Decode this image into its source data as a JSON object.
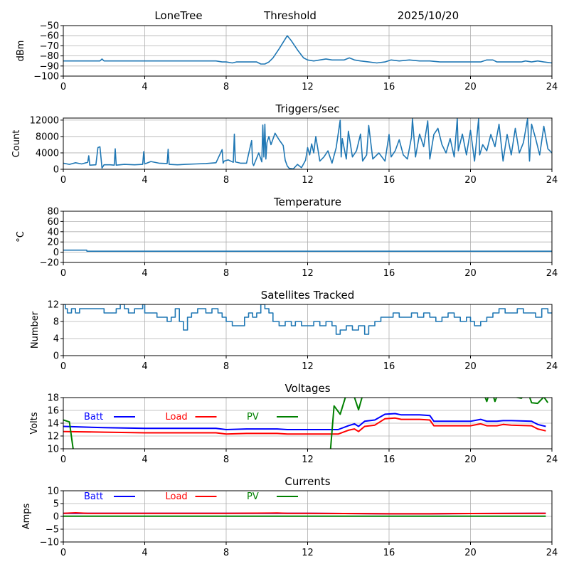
{
  "header": {
    "station": "LoneTree",
    "mode": "Threshold",
    "date": "2025/10/20"
  },
  "chart_data": [
    {
      "id": "signal",
      "type": "line",
      "title": "",
      "xlabel": "",
      "ylabel": "dBm",
      "xlim": [
        0,
        24
      ],
      "ylim": [
        -100,
        -50
      ],
      "xticks": [
        0,
        4,
        8,
        12,
        16,
        20,
        24
      ],
      "yticks": [
        -100,
        -90,
        -80,
        -70,
        -60,
        -50
      ],
      "ytick_labels": [
        "−100",
        "−90",
        "−80",
        "−70",
        "−60",
        "−50"
      ],
      "grid": true,
      "series": [
        {
          "name": "signal",
          "color": "#1f77b4",
          "x": [
            0,
            0.5,
            1,
            1.5,
            1.8,
            1.9,
            2.0,
            2.5,
            3,
            4,
            5,
            6,
            7,
            7.5,
            7.8,
            8.0,
            8.3,
            8.5,
            9.0,
            9.5,
            9.7,
            9.9,
            10.1,
            10.3,
            10.6,
            11.0,
            11.2,
            11.5,
            11.8,
            12.0,
            12.3,
            12.6,
            12.9,
            13.2,
            13.5,
            13.8,
            14.05,
            14.3,
            14.6,
            15.0,
            15.4,
            15.8,
            16.1,
            16.5,
            17.0,
            17.5,
            18.0,
            18.5,
            19.0,
            19.5,
            20.0,
            20.5,
            20.8,
            21.1,
            21.3,
            21.7,
            22.2,
            22.5,
            22.7,
            23.0,
            23.3,
            23.6,
            24.0
          ],
          "y": [
            -85,
            -85,
            -85,
            -85,
            -85,
            -83,
            -85,
            -85,
            -85,
            -85,
            -85,
            -85,
            -85,
            -85,
            -86,
            -86,
            -87,
            -86,
            -86,
            -86,
            -88,
            -88,
            -86,
            -82,
            -73,
            -60,
            -65,
            -74,
            -82,
            -84,
            -85,
            -84,
            -83,
            -84,
            -84,
            -84,
            -82,
            -84,
            -85,
            -86,
            -87,
            -86,
            -84,
            -85,
            -84,
            -85,
            -85,
            -86,
            -86,
            -86,
            -86,
            -86,
            -84,
            -84,
            -86,
            -86,
            -86,
            -86,
            -85,
            -86,
            -85,
            -86,
            -87
          ]
        }
      ]
    },
    {
      "id": "triggers",
      "type": "line",
      "title": "Triggers/sec",
      "xlabel": "",
      "ylabel": "Count",
      "xlim": [
        0,
        24
      ],
      "ylim": [
        0,
        12500
      ],
      "xticks": [
        0,
        4,
        8,
        12,
        16,
        20,
        24
      ],
      "yticks": [
        0,
        4000,
        8000,
        12000
      ],
      "ytick_labels": [
        "0",
        "4000",
        "8000",
        "12000"
      ],
      "grid": true,
      "series": [
        {
          "name": "triggers",
          "color": "#1f77b4",
          "x": [
            0,
            0.3,
            0.6,
            0.9,
            1.2,
            1.25,
            1.3,
            1.6,
            1.7,
            1.8,
            1.9,
            2.0,
            2.3,
            2.5,
            2.55,
            2.6,
            3.0,
            3.5,
            3.9,
            3.95,
            4.0,
            4.3,
            4.7,
            5.1,
            5.15,
            5.2,
            5.6,
            6.0,
            6.5,
            7.0,
            7.5,
            7.8,
            7.85,
            7.9,
            8.1,
            8.35,
            8.4,
            8.45,
            8.7,
            9.0,
            9.25,
            9.3,
            9.35,
            9.6,
            9.75,
            9.8,
            9.85,
            9.9,
            9.95,
            10.0,
            10.1,
            10.2,
            10.4,
            10.6,
            10.8,
            10.9,
            11.0,
            11.1,
            11.3,
            11.5,
            11.7,
            11.9,
            12.0,
            12.1,
            12.2,
            12.3,
            12.4,
            12.6,
            12.8,
            13.0,
            13.2,
            13.4,
            13.6,
            13.65,
            13.7,
            13.9,
            14.0,
            14.2,
            14.4,
            14.6,
            14.7,
            14.9,
            15.0,
            15.2,
            15.5,
            15.8,
            16.0,
            16.1,
            16.3,
            16.5,
            16.7,
            16.9,
            17.1,
            17.15,
            17.3,
            17.5,
            17.7,
            17.9,
            18.0,
            18.2,
            18.4,
            18.6,
            18.8,
            19.0,
            19.2,
            19.35,
            19.4,
            19.6,
            19.8,
            20.0,
            20.2,
            20.4,
            20.45,
            20.6,
            20.8,
            21.0,
            21.2,
            21.4,
            21.6,
            21.8,
            22.0,
            22.2,
            22.4,
            22.6,
            22.8,
            22.9,
            23.0,
            23.2,
            23.4,
            23.6,
            23.8,
            24.0
          ],
          "y": [
            1500,
            1200,
            1600,
            1300,
            1700,
            3300,
            1000,
            1100,
            5300,
            5500,
            300,
            1100,
            1100,
            1000,
            5000,
            1000,
            1200,
            1100,
            1200,
            4300,
            1300,
            1900,
            1500,
            1400,
            4900,
            1200,
            1100,
            1200,
            1300,
            1400,
            1600,
            4800,
            1500,
            2000,
            2300,
            1700,
            8600,
            1800,
            1500,
            1500,
            7000,
            1500,
            900,
            4000,
            1800,
            10800,
            3000,
            11000,
            2500,
            6500,
            8000,
            6000,
            8800,
            7200,
            5800,
            2200,
            800,
            200,
            100,
            1200,
            400,
            2200,
            5300,
            3500,
            6200,
            4000,
            8000,
            2000,
            3000,
            4500,
            1500,
            5200,
            12000,
            3000,
            7500,
            2500,
            9300,
            3000,
            4500,
            8600,
            2000,
            3500,
            10700,
            2500,
            4000,
            2000,
            8500,
            3000,
            4500,
            7200,
            3500,
            2500,
            7800,
            12300,
            3000,
            8600,
            5500,
            11800,
            2500,
            8500,
            10000,
            6000,
            4000,
            7500,
            3000,
            12300,
            4500,
            8600,
            3500,
            9500,
            2000,
            12300,
            3500,
            6000,
            4500,
            8500,
            5500,
            11000,
            2000,
            8500,
            3500,
            10000,
            4000,
            6500,
            12300,
            2000,
            11000,
            7500,
            3500,
            10500,
            5000,
            4000
          ]
        }
      ]
    },
    {
      "id": "temperature",
      "type": "line",
      "title": "Temperature",
      "xlabel": "",
      "ylabel": "°C",
      "ylabel_display": "oC",
      "xlim": [
        0,
        24
      ],
      "ylim": [
        -20,
        80
      ],
      "xticks": [
        0,
        4,
        8,
        12,
        16,
        20,
        24
      ],
      "yticks": [
        -20,
        0,
        20,
        40,
        60,
        80
      ],
      "ytick_labels": [
        "−20",
        "0",
        "20",
        "40",
        "60",
        "80"
      ],
      "grid": true,
      "series": [
        {
          "name": "temperature",
          "color": "#1f77b4",
          "x": [
            0,
            1.15,
            1.16,
            24
          ],
          "y": [
            4,
            4,
            2,
            2
          ]
        }
      ]
    },
    {
      "id": "satellites",
      "type": "line",
      "title": "Satellites Tracked",
      "xlabel": "",
      "ylabel": "Number",
      "xlim": [
        0,
        24
      ],
      "ylim": [
        0,
        12
      ],
      "xticks": [
        0,
        4,
        8,
        12,
        16,
        20,
        24
      ],
      "yticks": [
        0,
        4,
        8,
        12
      ],
      "ytick_labels": [
        "0",
        "4",
        "8",
        "12"
      ],
      "grid": true,
      "series": [
        {
          "name": "satellites",
          "color": "#1f77b4",
          "step": true,
          "x": [
            0,
            0.1,
            0.2,
            0.4,
            0.6,
            0.8,
            1.0,
            1.5,
            2.0,
            2.4,
            2.6,
            2.8,
            3.0,
            3.2,
            3.5,
            3.7,
            3.9,
            4.0,
            4.3,
            4.6,
            4.9,
            5.1,
            5.3,
            5.5,
            5.7,
            5.9,
            6.1,
            6.3,
            6.6,
            7.0,
            7.3,
            7.6,
            7.8,
            8.0,
            8.3,
            8.6,
            8.9,
            9.1,
            9.3,
            9.5,
            9.7,
            9.9,
            10.1,
            10.3,
            10.6,
            10.9,
            11.2,
            11.4,
            11.7,
            12.0,
            12.3,
            12.6,
            12.9,
            13.2,
            13.4,
            13.6,
            13.9,
            14.2,
            14.5,
            14.8,
            15.0,
            15.3,
            15.6,
            15.9,
            16.2,
            16.5,
            16.8,
            17.1,
            17.4,
            17.7,
            18.0,
            18.3,
            18.6,
            18.9,
            19.2,
            19.5,
            19.8,
            20.0,
            20.2,
            20.5,
            20.8,
            21.1,
            21.4,
            21.7,
            22.0,
            22.3,
            22.6,
            22.9,
            23.2,
            23.5,
            23.8,
            24.0
          ],
          "y": [
            12,
            11,
            10,
            11,
            10,
            11,
            11,
            11,
            10,
            10,
            11,
            12,
            11,
            10,
            11,
            11,
            12,
            10,
            10,
            9,
            9,
            8,
            9,
            11,
            8,
            6,
            9,
            10,
            11,
            10,
            11,
            10,
            9,
            8,
            7,
            7,
            9,
            10,
            9,
            10,
            12,
            11,
            10,
            8,
            7,
            8,
            7,
            8,
            7,
            7,
            8,
            7,
            8,
            7,
            5,
            6,
            7,
            6,
            7,
            5,
            7,
            8,
            9,
            9,
            10,
            9,
            9,
            10,
            9,
            10,
            9,
            8,
            9,
            10,
            9,
            8,
            9,
            8,
            7,
            8,
            9,
            10,
            11,
            10,
            10,
            11,
            10,
            10,
            9,
            11,
            10,
            10
          ]
        }
      ]
    },
    {
      "id": "voltages",
      "type": "line",
      "title": "Voltages",
      "xlabel": "",
      "ylabel": "Volts",
      "xlim": [
        0,
        24
      ],
      "ylim": [
        10,
        18
      ],
      "xticks": [
        0,
        4,
        8,
        12,
        16,
        20,
        24
      ],
      "yticks": [
        10,
        12,
        14,
        16,
        18
      ],
      "ytick_labels": [
        "10",
        "12",
        "14",
        "16",
        "18"
      ],
      "grid": true,
      "legend": {
        "placement": "top-left",
        "entries": [
          {
            "label": "Batt",
            "color": "#0000ff"
          },
          {
            "label": "Load",
            "color": "#ff0000"
          },
          {
            "label": "PV",
            "color": "#008000"
          }
        ]
      },
      "series": [
        {
          "name": "Batt",
          "color": "#0000ff",
          "x": [
            0,
            2,
            4,
            6,
            7.5,
            8,
            9,
            10.5,
            11,
            11.5,
            12,
            13,
            13.5,
            14.0,
            14.3,
            14.5,
            14.8,
            15.3,
            15.8,
            16.3,
            16.6,
            17.0,
            17.5,
            18.0,
            18.2,
            20.0,
            20.5,
            20.8,
            21.3,
            21.6,
            22.0,
            23.0,
            23.3,
            23.7
          ],
          "y": [
            13.5,
            13.3,
            13.2,
            13.2,
            13.2,
            13.0,
            13.1,
            13.1,
            13.0,
            13.0,
            13.0,
            13.0,
            13.0,
            13.6,
            13.9,
            13.5,
            14.3,
            14.5,
            15.4,
            15.5,
            15.3,
            15.3,
            15.3,
            15.2,
            14.3,
            14.3,
            14.6,
            14.3,
            14.3,
            14.4,
            14.4,
            14.3,
            13.8,
            13.5
          ]
        },
        {
          "name": "Load",
          "color": "#ff0000",
          "x": [
            0,
            2,
            4,
            6,
            7.5,
            8,
            9,
            10.5,
            11,
            11.5,
            12,
            13,
            13.5,
            14.0,
            14.3,
            14.5,
            14.8,
            15.3,
            15.8,
            16.3,
            16.6,
            17.0,
            17.5,
            18.0,
            18.2,
            20.0,
            20.5,
            20.8,
            21.3,
            21.6,
            22.0,
            23.0,
            23.3,
            23.7
          ],
          "y": [
            12.7,
            12.6,
            12.5,
            12.5,
            12.5,
            12.3,
            12.4,
            12.4,
            12.3,
            12.3,
            12.3,
            12.3,
            12.3,
            12.9,
            13.1,
            12.7,
            13.5,
            13.7,
            14.7,
            14.8,
            14.6,
            14.6,
            14.6,
            14.5,
            13.6,
            13.6,
            13.9,
            13.6,
            13.6,
            13.8,
            13.7,
            13.6,
            13.1,
            12.8
          ]
        },
        {
          "name": "PV",
          "color": "#008000",
          "x": [
            0,
            0.3,
            0.7,
            13.0,
            13.3,
            13.6,
            13.9,
            14.2,
            14.5,
            14.8,
            20.6,
            20.8,
            21.0,
            21.2,
            21.4,
            22.0,
            22.5,
            22.8,
            23.0,
            23.3,
            23.6,
            23.8
          ],
          "y": [
            14.5,
            14.2,
            5.0,
            5.0,
            16.7,
            15.4,
            18.5,
            19.0,
            16.1,
            19.5,
            19.0,
            17.4,
            19.5,
            17.4,
            19.0,
            18.2,
            17.9,
            19.0,
            17.2,
            17.1,
            18.1,
            17.2
          ]
        }
      ]
    },
    {
      "id": "currents",
      "type": "line",
      "title": "Currents",
      "xlabel": "",
      "ylabel": "Amps",
      "xlim": [
        0,
        24
      ],
      "ylim": [
        -10,
        10
      ],
      "xticks": [
        0,
        4,
        8,
        12,
        16,
        20,
        24
      ],
      "yticks": [
        -10,
        -5,
        0,
        5,
        10
      ],
      "ytick_labels": [
        "−10",
        "−5",
        "0",
        "5",
        "10"
      ],
      "grid": true,
      "legend": {
        "placement": "top-left",
        "entries": [
          {
            "label": "Batt",
            "color": "#0000ff"
          },
          {
            "label": "Load",
            "color": "#ff0000"
          },
          {
            "label": "PV",
            "color": "#008000"
          }
        ]
      },
      "series": [
        {
          "name": "Batt",
          "color": "#0000ff",
          "x": [
            0,
            4,
            8,
            12,
            16,
            18,
            20,
            23.7
          ],
          "y": [
            1.2,
            1.2,
            1.2,
            1.2,
            1.0,
            1.0,
            1.1,
            1.2
          ]
        },
        {
          "name": "Load",
          "color": "#ff0000",
          "x": [
            0,
            0.6,
            1.2,
            4,
            8,
            10.5,
            11,
            12,
            16,
            18,
            20,
            23.7
          ],
          "y": [
            1.2,
            1.4,
            1.2,
            1.2,
            1.2,
            1.3,
            1.2,
            1.2,
            1.0,
            1.0,
            1.1,
            1.2
          ]
        },
        {
          "name": "PV",
          "color": "#008000",
          "x": [
            0,
            23.7
          ],
          "y": [
            0.05,
            0.05
          ]
        }
      ]
    }
  ]
}
